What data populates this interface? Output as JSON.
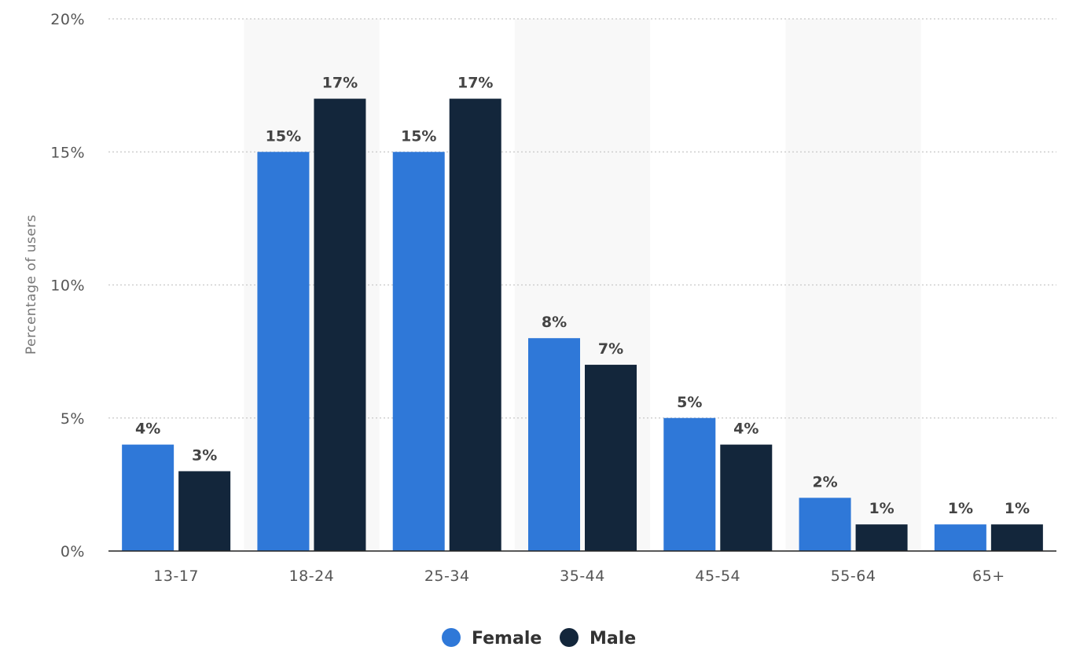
{
  "chart_data": {
    "type": "bar",
    "title": "",
    "xlabel": "",
    "ylabel": "Percentage of users",
    "ylim": [
      0,
      20
    ],
    "y_ticks": [
      "0%",
      "5%",
      "10%",
      "15%",
      "20%"
    ],
    "y_tick_values": [
      0,
      5,
      10,
      15,
      20
    ],
    "categories": [
      "13-17",
      "18-24",
      "25-34",
      "35-44",
      "45-54",
      "55-64",
      "65+"
    ],
    "series": [
      {
        "name": "Female",
        "color": "#2f78d8",
        "values": [
          4,
          15,
          15,
          8,
          5,
          2,
          1
        ],
        "labels": [
          "4%",
          "15%",
          "15%",
          "8%",
          "5%",
          "2%",
          "1%"
        ]
      },
      {
        "name": "Male",
        "color": "#13263b",
        "values": [
          3,
          17,
          17,
          7,
          4,
          1,
          1
        ],
        "labels": [
          "3%",
          "17%",
          "17%",
          "7%",
          "4%",
          "1%",
          "1%"
        ]
      }
    ],
    "grid": true,
    "alternating_band_color": "#f8f8f8",
    "legend_position": "bottom-center"
  }
}
